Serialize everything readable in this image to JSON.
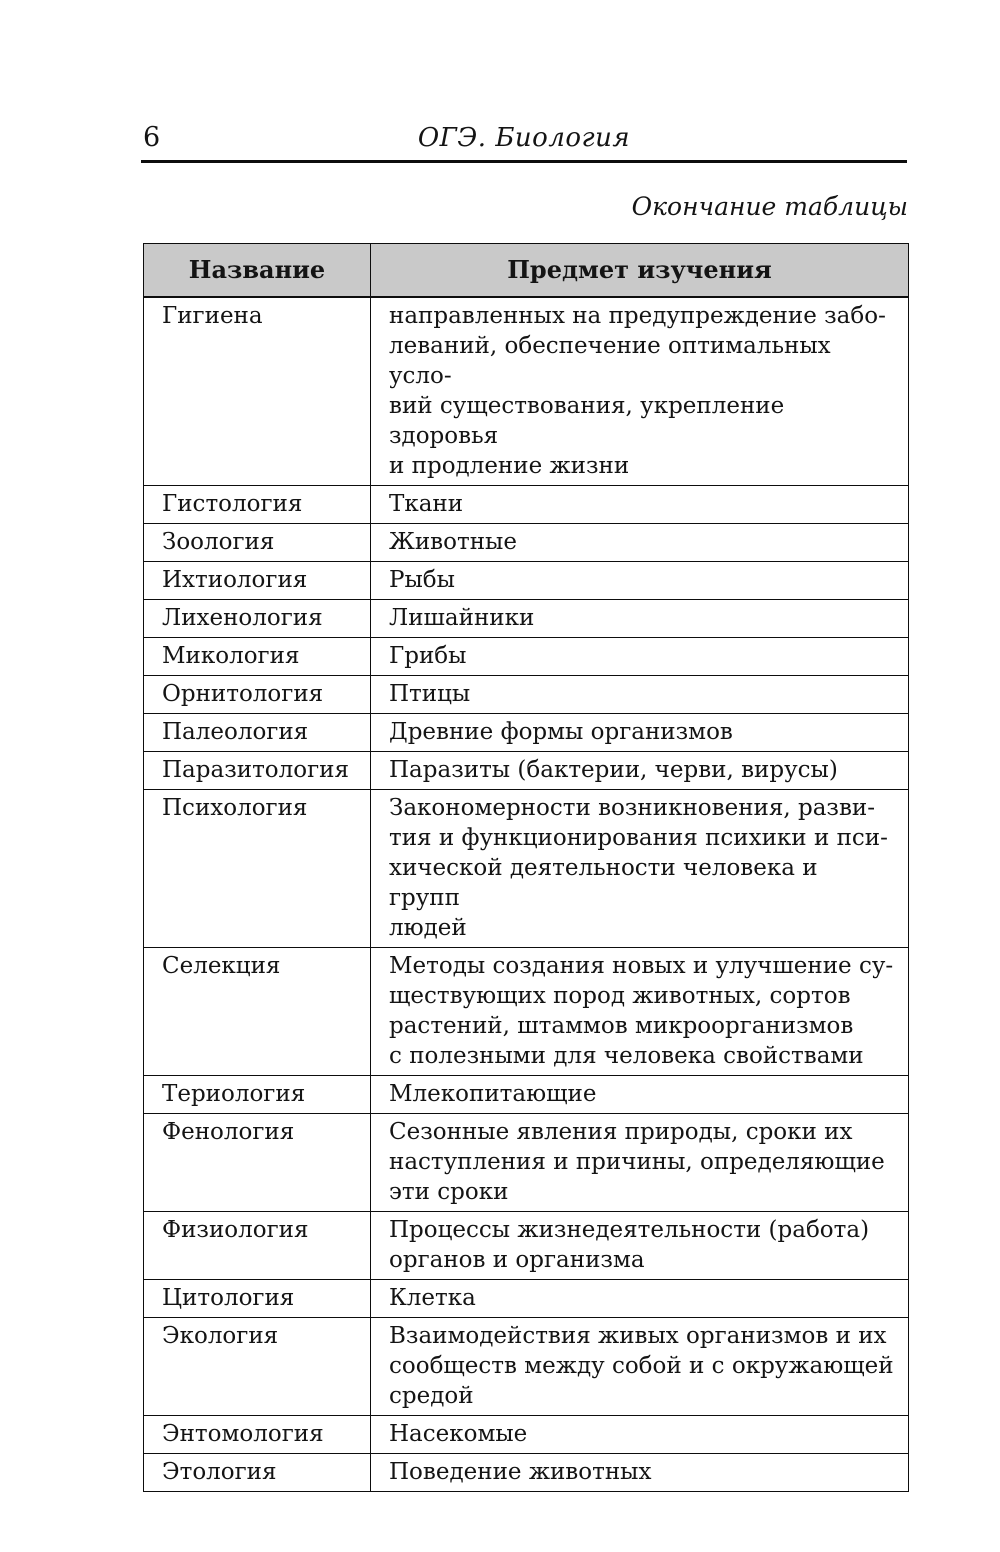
{
  "page": {
    "number": "6",
    "running_title": "ОГЭ. Биология",
    "continuation_note": "Окончание таблицы"
  },
  "colors": {
    "table_header_bg": "#c9c9c9",
    "border": "#0d0d0d",
    "text": "#141414",
    "page_bg": "#ffffff"
  },
  "table": {
    "headers": {
      "name": "Название",
      "subject": "Предмет изучения"
    },
    "rows": [
      {
        "name": "Гигиена",
        "subject": "направленных на предупреждение забо-\nлеваний, обеспечение оптимальных усло-\nвий существования, укрепление здоровья\nи продление жизни"
      },
      {
        "name": "Гистология",
        "subject": "Ткани"
      },
      {
        "name": "Зоология",
        "subject": "Животные"
      },
      {
        "name": "Ихтиология",
        "subject": "Рыбы"
      },
      {
        "name": "Лихенология",
        "subject": "Лишайники"
      },
      {
        "name": "Микология",
        "subject": "Грибы"
      },
      {
        "name": "Орнитология",
        "subject": "Птицы"
      },
      {
        "name": "Палеология",
        "subject": "Древние формы организмов"
      },
      {
        "name": "Паразитология",
        "subject": "Паразиты (бактерии, черви, вирусы)"
      },
      {
        "name": "Психология",
        "subject": "Закономерности возникновения, разви-\nтия и функционирования психики и пси-\nхической деятельности человека и групп\nлюдей"
      },
      {
        "name": "Селекция",
        "subject": "Методы создания новых и улучшение су-\nществующих пород животных, сортов\nрастений, штаммов микроорганизмов\nс полезными для человека свойствами"
      },
      {
        "name": "Териология",
        "subject": "Млекопитающие"
      },
      {
        "name": "Фенология",
        "subject": "Сезонные явления природы, сроки их\nнаступления и причины, определяющие\nэти сроки"
      },
      {
        "name": "Физиология",
        "subject": "Процессы жизнедеятельности (работа)\nорганов и организма"
      },
      {
        "name": "Цитология",
        "subject": "Клетка"
      },
      {
        "name": "Экология",
        "subject": "Взаимодействия живых организмов и их\nсообществ между собой и с окружающей\nсредой"
      },
      {
        "name": "Энтомология",
        "subject": "Насекомые"
      },
      {
        "name": "Этология",
        "subject": "Поведение животных"
      }
    ]
  }
}
